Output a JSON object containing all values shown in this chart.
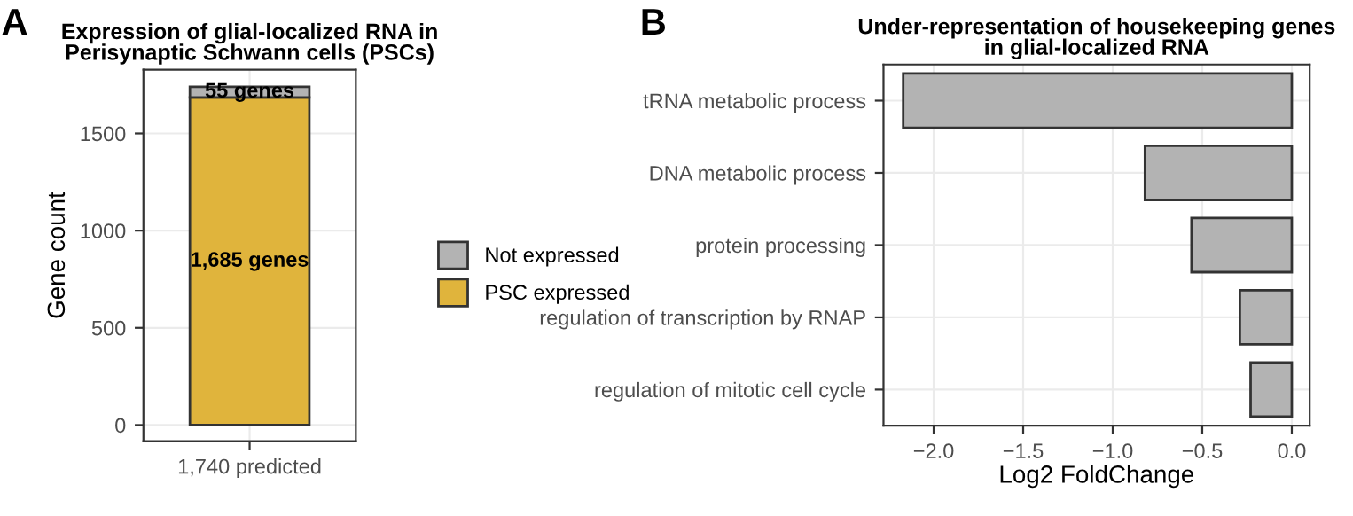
{
  "chart_data": [
    {
      "type": "bar",
      "title": "Expression of glial-localized RNA in\nPerisynaptic Schwann cells (PSCs)",
      "ylabel": "Gene count",
      "categories": [
        "1,740 predicted"
      ],
      "stacked": true,
      "series": [
        {
          "name": "PSC expressed",
          "color": "#e0b43c",
          "values": [
            1685
          ],
          "value_labels": [
            "1,685 genes"
          ]
        },
        {
          "name": "Not expressed",
          "color": "#b3b3b3",
          "values": [
            55
          ],
          "value_labels": [
            "55 genes"
          ]
        }
      ],
      "ylim": [
        -83,
        1828
      ],
      "yticks": [
        0,
        500,
        1000,
        1500
      ],
      "grid": true,
      "legend": "right",
      "annotations": [
        "A"
      ]
    },
    {
      "type": "bar",
      "orientation": "horizontal",
      "title": "Under-representation of housekeeping genes\nin glial-localized RNA",
      "xlabel": "Log2 FoldChange",
      "categories": [
        "tRNA metabolic process",
        "DNA metabolic process",
        "protein processing",
        "regulation of transcription by RNAP",
        "regulation of mitotic cell cycle"
      ],
      "values": [
        -2.17,
        -0.82,
        -0.56,
        -0.29,
        -0.23
      ],
      "color": "#b3b3b3",
      "xlim": [
        -2.28,
        0.1
      ],
      "xticks": [
        {
          "value": -2.0,
          "label": "−2.0"
        },
        {
          "value": -1.5,
          "label": "−1.5"
        },
        {
          "value": -1.0,
          "label": "−1.0"
        },
        {
          "value": -0.5,
          "label": "−0.5"
        },
        {
          "value": 0.0,
          "label": "0.0"
        }
      ],
      "grid": true,
      "annotations": [
        "B"
      ]
    }
  ]
}
